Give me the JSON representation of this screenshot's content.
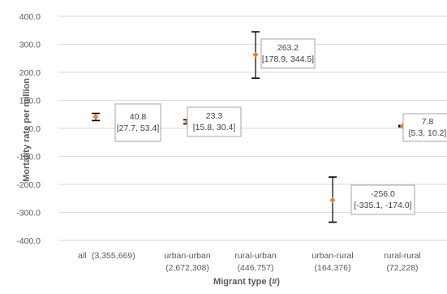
{
  "chart_data": {
    "type": "scatter",
    "title": "",
    "xlabel": "Migrant type (#)",
    "ylabel": "Mortality rate per million",
    "ylim": [
      -400,
      400
    ],
    "yticks": [
      "400.0",
      "300.0",
      "200.0",
      "100.0",
      "0.0",
      "-100.0",
      "-200.0",
      "-300.0",
      "-400.0"
    ],
    "grid": true,
    "legend": "none",
    "categories": [
      {
        "name": "all",
        "count": "(3,355,669)"
      },
      {
        "name": "urban-urban",
        "count": "(2,672,308)"
      },
      {
        "name": "rural-urban",
        "count": "(446,757)"
      },
      {
        "name": "urban-rural",
        "count": "(164,376)"
      },
      {
        "name": "rural-rural",
        "count": "(72,228)"
      }
    ],
    "points": [
      {
        "value": 40.8,
        "low": 27.7,
        "high": 53.4,
        "label": "40.8",
        "ci": "[27.7, 53.4]"
      },
      {
        "value": 23.3,
        "low": 15.8,
        "high": 30.4,
        "label": "23.3",
        "ci": "[15.8, 30.4]"
      },
      {
        "value": 263.2,
        "low": 178.9,
        "high": 344.5,
        "label": "263.2",
        "ci": "[178.9, 344.5]"
      },
      {
        "value": -256.0,
        "low": -335.1,
        "high": -174.0,
        "label": "-256.0",
        "ci": "[-335.1, -174.0]"
      },
      {
        "value": 7.8,
        "low": 5.3,
        "high": 10.2,
        "label": "7.8",
        "ci": "[5.3, 10.2]"
      }
    ],
    "colors": {
      "marker": "#ED7D31",
      "errorbar": "#000000",
      "grid": "#D9D9D9",
      "label_border": "#A6A6A6"
    }
  }
}
